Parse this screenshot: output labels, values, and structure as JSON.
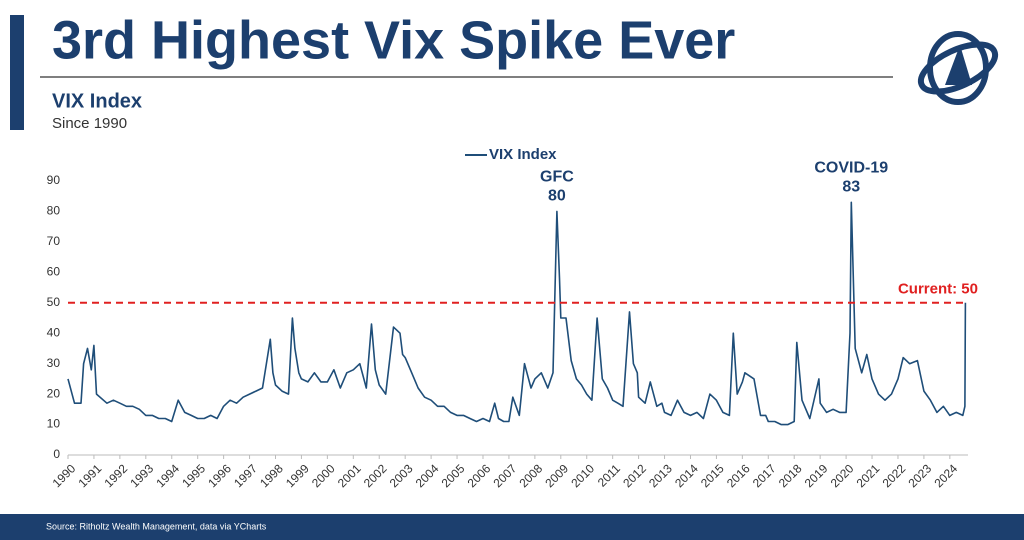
{
  "chart_data": {
    "type": "line",
    "title": "3rd Highest Vix Spike Ever",
    "subtitle": "VIX Index",
    "subtitle2": "Since 1990",
    "source": "Source: Ritholtz Wealth Management, data via YCharts",
    "legend": "top",
    "x": [
      1990.0,
      1990.25,
      1990.5,
      1990.6,
      1990.75,
      1990.9,
      1991.0,
      1991.1,
      1991.5,
      1991.75,
      1992.0,
      1992.25,
      1992.5,
      1992.75,
      1993.0,
      1993.25,
      1993.5,
      1993.75,
      1994.0,
      1994.25,
      1994.5,
      1994.75,
      1995.0,
      1995.25,
      1995.5,
      1995.75,
      1996.0,
      1996.25,
      1996.5,
      1996.75,
      1997.0,
      1997.25,
      1997.5,
      1997.8,
      1997.9,
      1998.0,
      1998.25,
      1998.5,
      1998.65,
      1998.75,
      1998.9,
      1999.0,
      1999.25,
      1999.5,
      1999.75,
      2000.0,
      2000.25,
      2000.5,
      2000.75,
      2001.0,
      2001.25,
      2001.5,
      2001.7,
      2001.85,
      2002.0,
      2002.25,
      2002.55,
      2002.8,
      2002.9,
      2003.0,
      2003.25,
      2003.5,
      2003.75,
      2004.0,
      2004.25,
      2004.5,
      2004.75,
      2005.0,
      2005.25,
      2005.5,
      2005.75,
      2006.0,
      2006.25,
      2006.45,
      2006.6,
      2006.8,
      2007.0,
      2007.15,
      2007.4,
      2007.6,
      2007.85,
      2008.0,
      2008.25,
      2008.5,
      2008.7,
      2008.85,
      2008.95,
      2009.0,
      2009.2,
      2009.4,
      2009.6,
      2009.8,
      2010.0,
      2010.2,
      2010.4,
      2010.6,
      2010.8,
      2011.0,
      2011.2,
      2011.4,
      2011.65,
      2011.8,
      2011.95,
      2012.0,
      2012.25,
      2012.45,
      2012.7,
      2012.9,
      2013.0,
      2013.25,
      2013.5,
      2013.75,
      2014.0,
      2014.25,
      2014.5,
      2014.75,
      2015.0,
      2015.25,
      2015.5,
      2015.65,
      2015.8,
      2016.0,
      2016.1,
      2016.45,
      2016.7,
      2016.9,
      2017.0,
      2017.25,
      2017.5,
      2017.75,
      2018.0,
      2018.1,
      2018.3,
      2018.6,
      2018.95,
      2019.0,
      2019.25,
      2019.5,
      2019.75,
      2020.0,
      2020.15,
      2020.2,
      2020.35,
      2020.6,
      2020.8,
      2021.0,
      2021.25,
      2021.5,
      2021.75,
      2022.0,
      2022.2,
      2022.45,
      2022.75,
      2023.0,
      2023.25,
      2023.5,
      2023.75,
      2024.0,
      2024.25,
      2024.5,
      2024.58,
      2024.6
    ],
    "series": [
      {
        "name": "VIX Index",
        "color": "#1f4e79",
        "values": [
          25,
          17,
          17,
          30,
          35,
          28,
          36,
          20,
          17,
          18,
          17,
          16,
          16,
          15,
          13,
          13,
          12,
          12,
          11,
          18,
          14,
          13,
          12,
          12,
          13,
          12,
          16,
          18,
          17,
          19,
          20,
          21,
          22,
          38,
          27,
          23,
          21,
          20,
          45,
          35,
          27,
          25,
          24,
          27,
          24,
          24,
          28,
          22,
          27,
          28,
          30,
          22,
          43,
          28,
          23,
          20,
          42,
          40,
          33,
          32,
          27,
          22,
          19,
          18,
          16,
          16,
          14,
          13,
          13,
          12,
          11,
          12,
          11,
          17,
          12,
          11,
          11,
          19,
          13,
          30,
          22,
          25,
          27,
          22,
          27,
          80,
          58,
          45,
          45,
          31,
          25,
          23,
          20,
          18,
          45,
          25,
          22,
          18,
          17,
          16,
          47,
          30,
          27,
          19,
          17,
          24,
          16,
          17,
          14,
          13,
          18,
          14,
          13,
          14,
          12,
          20,
          18,
          14,
          13,
          40,
          20,
          24,
          27,
          25,
          13,
          13,
          11,
          11,
          10,
          10,
          11,
          37,
          18,
          12,
          25,
          17,
          14,
          15,
          14,
          14,
          40,
          83,
          35,
          27,
          33,
          25,
          20,
          18,
          20,
          25,
          32,
          30,
          31,
          21,
          18,
          14,
          16,
          13,
          14,
          13,
          16,
          50
        ]
      }
    ],
    "xlim": [
      1990,
      2024.7
    ],
    "xticks": [
      1990,
      1991,
      1992,
      1993,
      1994,
      1995,
      1996,
      1997,
      1998,
      1999,
      2000,
      2001,
      2002,
      2003,
      2004,
      2005,
      2006,
      2007,
      2008,
      2009,
      2010,
      2011,
      2012,
      2013,
      2014,
      2015,
      2016,
      2017,
      2018,
      2019,
      2020,
      2021,
      2022,
      2023,
      2024
    ],
    "ylim": [
      0,
      90
    ],
    "yticks": [
      0,
      10,
      20,
      30,
      40,
      50,
      60,
      70,
      80,
      90
    ],
    "reference_line": {
      "value": 50,
      "label": "Current: 50",
      "color": "#e02020"
    },
    "annotations": [
      {
        "label": "GFC",
        "x": 2008.85,
        "value": 80
      },
      {
        "label": "COVID-19",
        "x": 2020.2,
        "value": 83
      }
    ]
  }
}
